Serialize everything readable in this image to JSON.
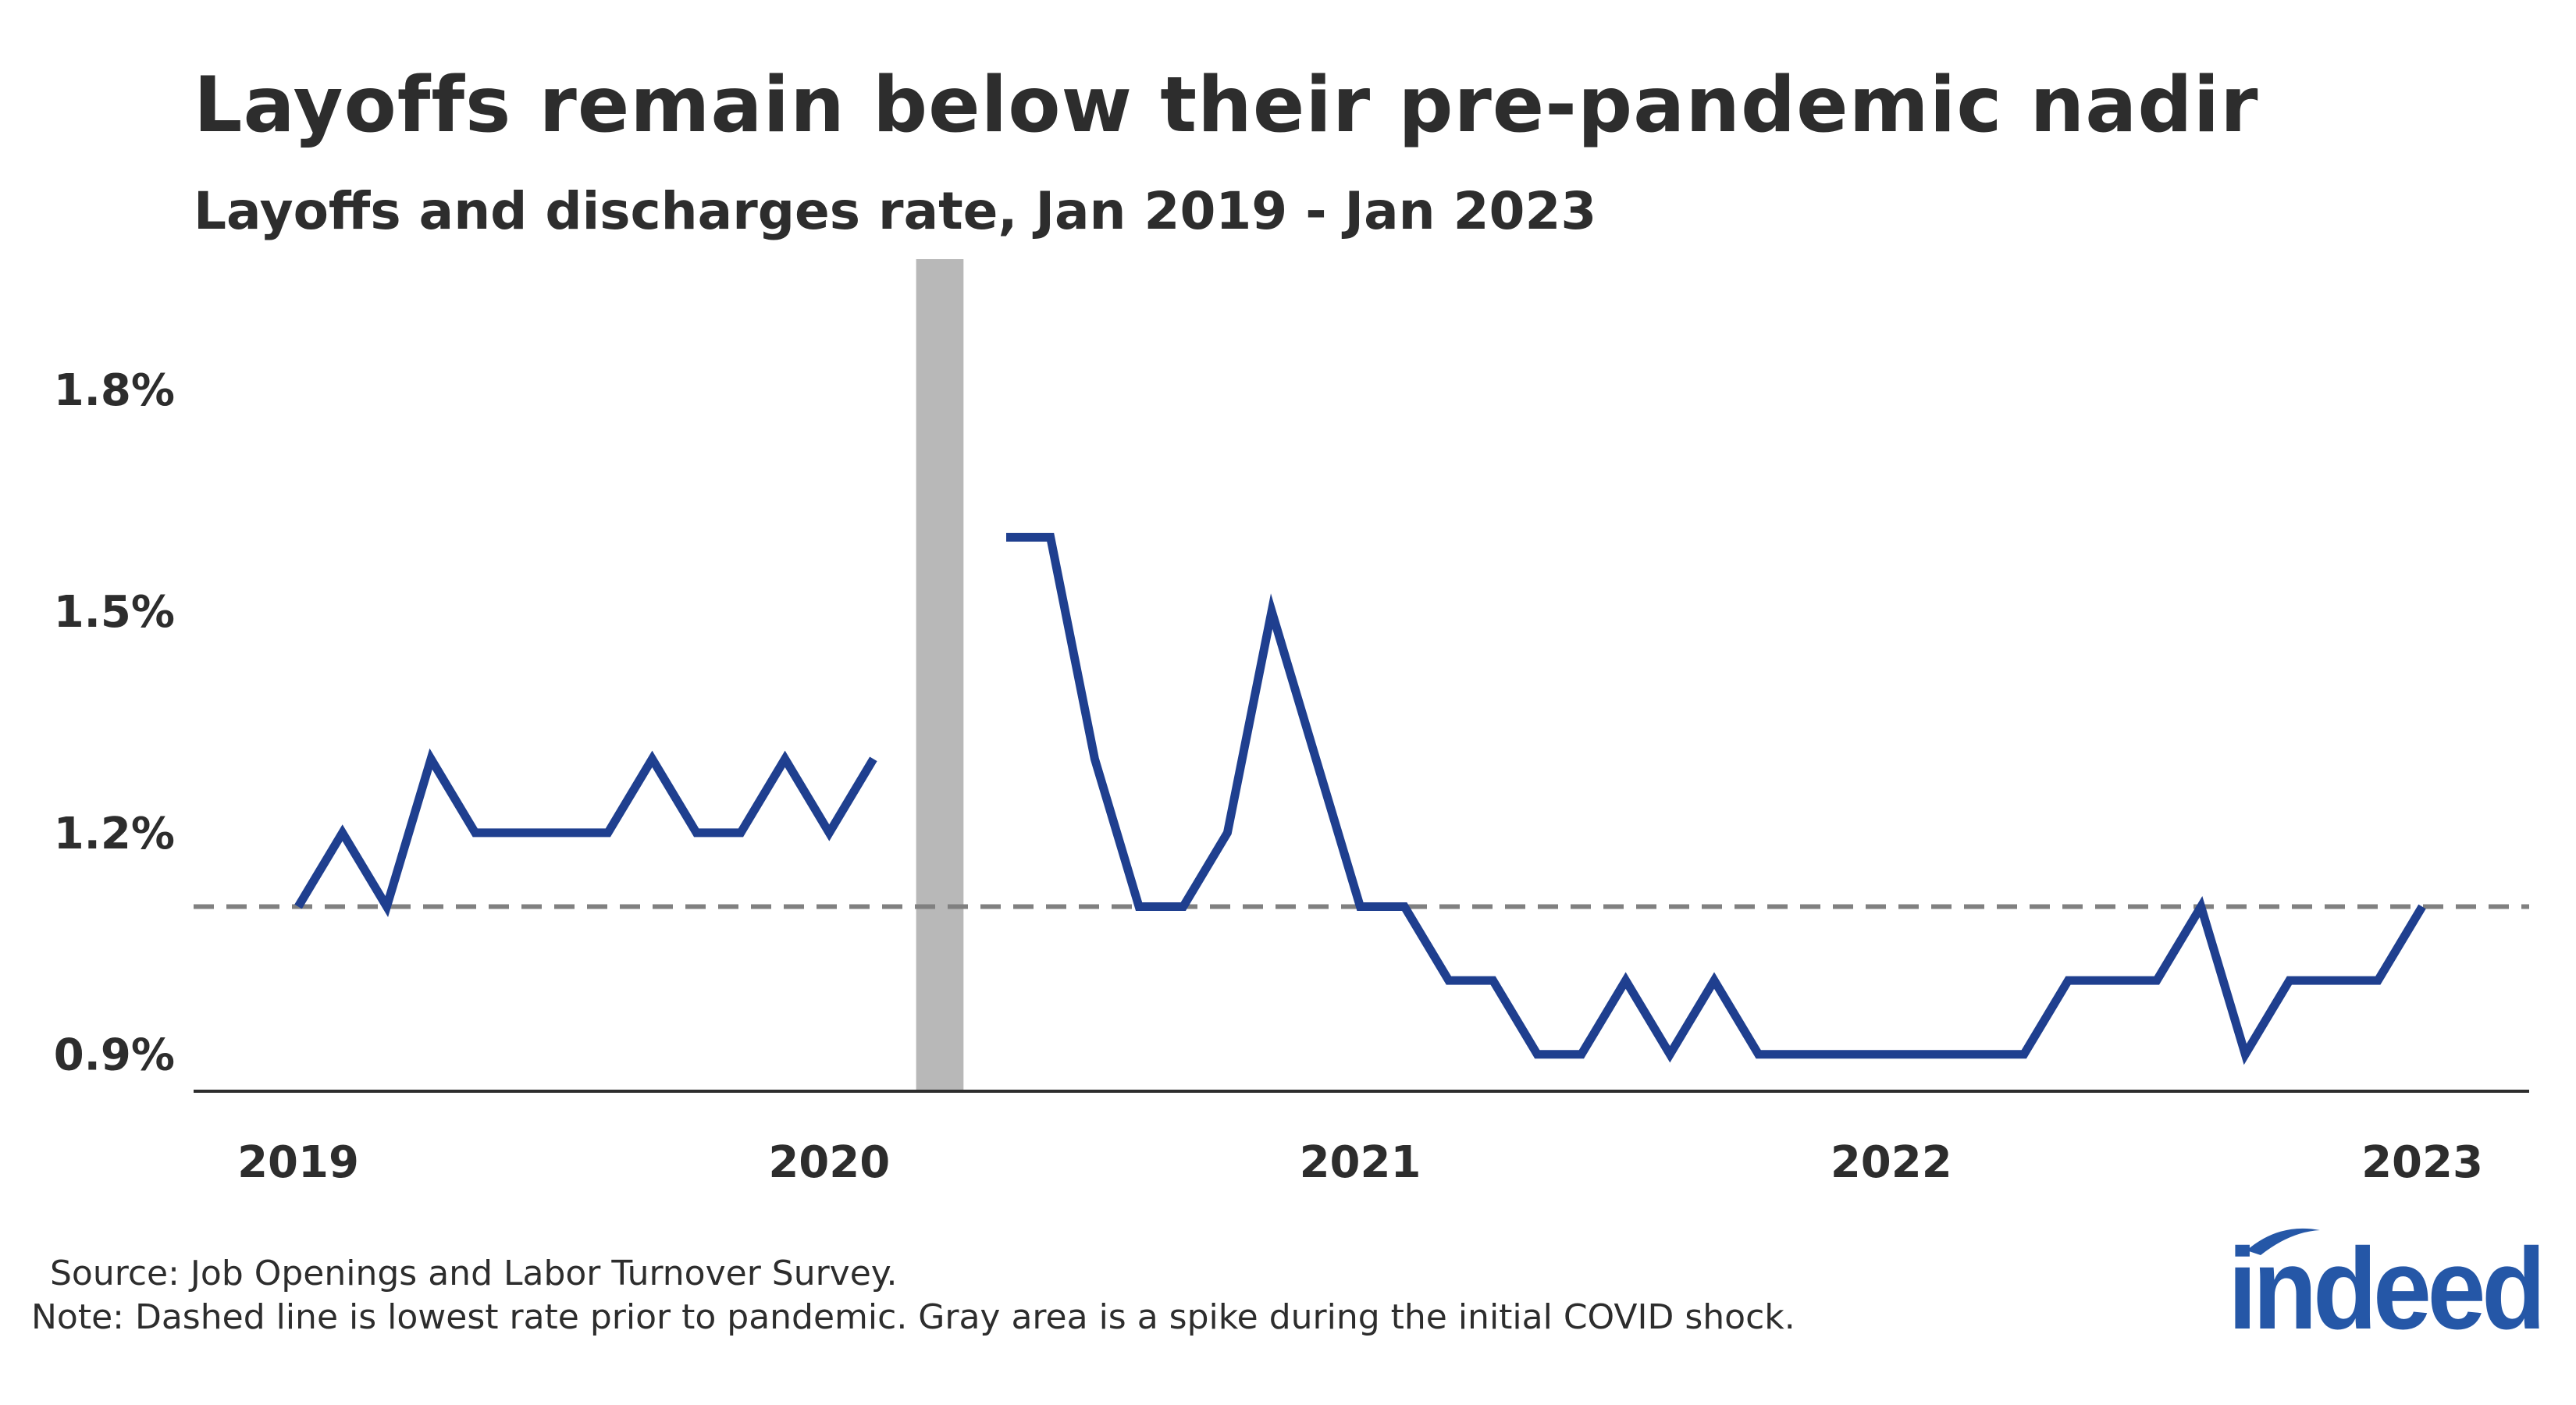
{
  "chart_data": {
    "type": "line",
    "title": "Layoffs remain below their pre-pandemic nadir",
    "subtitle": "Layoffs and discharges rate, Jan 2019 - Jan 2023",
    "ylim": [
      0.85,
      2.0
    ],
    "yticks": [
      0.9,
      1.2,
      1.5,
      1.8
    ],
    "ytick_labels": [
      "0.9%",
      "1.2%",
      "1.5%",
      "1.8%"
    ],
    "xticks": [
      "2019",
      "2020",
      "2021",
      "2022",
      "2023"
    ],
    "reference_line": {
      "value": 1.1,
      "style": "dashed",
      "color": "#808080"
    },
    "shaded_region": {
      "start": "2020-03",
      "end": "2020-04",
      "color": "#b8b8b8"
    },
    "series": [
      {
        "color": "#1f3f8f",
        "points": [
          [
            "2019-01",
            1.1
          ],
          [
            "2019-02",
            1.2
          ],
          [
            "2019-03",
            1.1
          ],
          [
            "2019-04",
            1.3
          ],
          [
            "2019-05",
            1.2
          ],
          [
            "2019-06",
            1.2
          ],
          [
            "2019-07",
            1.2
          ],
          [
            "2019-08",
            1.2
          ],
          [
            "2019-09",
            1.3
          ],
          [
            "2019-10",
            1.2
          ],
          [
            "2019-11",
            1.2
          ],
          [
            "2019-12",
            1.3
          ],
          [
            "2020-01",
            1.2
          ],
          [
            "2020-02",
            1.3
          ],
          [
            "2020-03",
            null
          ],
          [
            "2020-04",
            null
          ],
          [
            "2020-05",
            1.6
          ],
          [
            "2020-06",
            1.6
          ],
          [
            "2020-07",
            1.3
          ],
          [
            "2020-08",
            1.1
          ],
          [
            "2020-09",
            1.1
          ],
          [
            "2020-10",
            1.2
          ],
          [
            "2020-11",
            1.5
          ],
          [
            "2020-12",
            1.3
          ],
          [
            "2021-01",
            1.1
          ],
          [
            "2021-02",
            1.1
          ],
          [
            "2021-03",
            1.0
          ],
          [
            "2021-04",
            1.0
          ],
          [
            "2021-05",
            0.9
          ],
          [
            "2021-06",
            0.9
          ],
          [
            "2021-07",
            1.0
          ],
          [
            "2021-08",
            0.9
          ],
          [
            "2021-09",
            1.0
          ],
          [
            "2021-10",
            0.9
          ],
          [
            "2021-11",
            0.9
          ],
          [
            "2021-12",
            0.9
          ],
          [
            "2022-01",
            0.9
          ],
          [
            "2022-02",
            0.9
          ],
          [
            "2022-03",
            0.9
          ],
          [
            "2022-04",
            0.9
          ],
          [
            "2022-05",
            1.0
          ],
          [
            "2022-06",
            1.0
          ],
          [
            "2022-07",
            1.0
          ],
          [
            "2022-08",
            1.1
          ],
          [
            "2022-09",
            0.9
          ],
          [
            "2022-10",
            1.0
          ],
          [
            "2022-11",
            1.0
          ],
          [
            "2022-12",
            1.0
          ],
          [
            "2023-01",
            1.1
          ]
        ]
      }
    ]
  },
  "footer": {
    "source": "Source: Job Openings and Labor Turnover Survey.",
    "note": "Note: Dashed line is lowest rate prior to pandemic. Gray area is a spike during the initial COVID shock."
  },
  "logo": {
    "text": "indeed",
    "color": "#2557a7"
  }
}
